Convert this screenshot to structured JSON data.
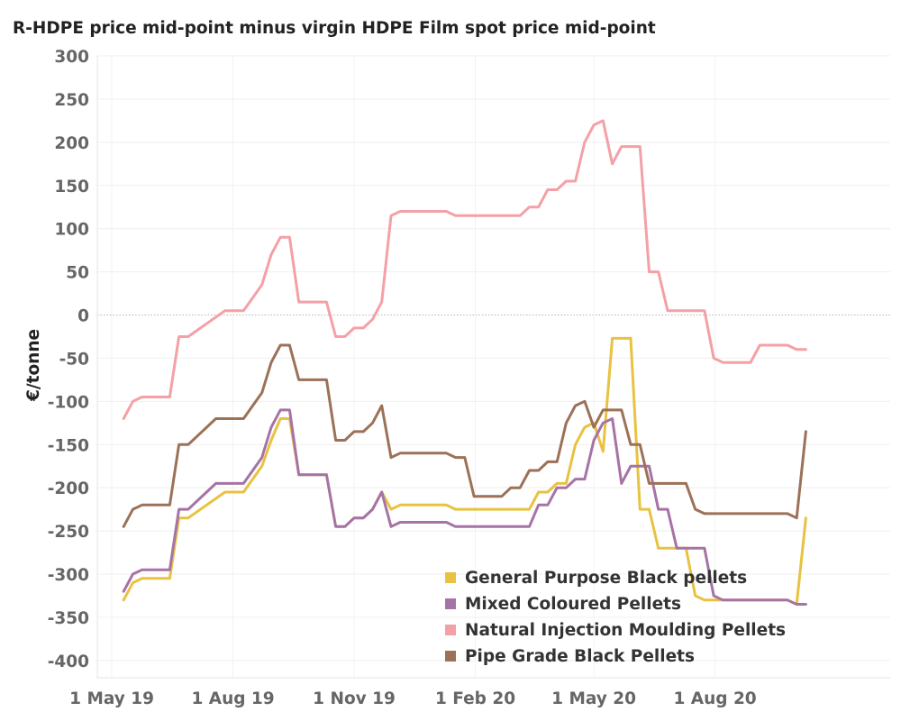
{
  "chart_data": {
    "type": "line",
    "title": "R-HDPE price mid-point minus virgin HDPE Film spot price mid-point",
    "xlabel": "",
    "ylabel": "€/tonne",
    "ylim": [
      -420,
      300
    ],
    "yticks": [
      300,
      250,
      200,
      150,
      100,
      50,
      0,
      -50,
      -100,
      -150,
      -200,
      -250,
      -300,
      -350,
      -400
    ],
    "xlim": [
      "2019-04-20",
      "2020-12-12"
    ],
    "xticks": [
      {
        "date": "2019-05-01",
        "label": "1 May 19"
      },
      {
        "date": "2019-08-01",
        "label": "1 Aug 19"
      },
      {
        "date": "2019-11-01",
        "label": "1 Nov 19"
      },
      {
        "date": "2020-02-01",
        "label": "1 Feb 20"
      },
      {
        "date": "2020-05-01",
        "label": "1 May 20"
      },
      {
        "date": "2020-08-01",
        "label": "1 Aug 20"
      }
    ],
    "legend_position": "bottom-right",
    "grid": true,
    "series": [
      {
        "name": "General Purpose Black pellets",
        "color": "#e8c241",
        "points": [
          [
            "2019-05-10",
            -330
          ],
          [
            "2019-05-17",
            -310
          ],
          [
            "2019-05-24",
            -305
          ],
          [
            "2019-05-31",
            -305
          ],
          [
            "2019-06-14",
            -305
          ],
          [
            "2019-06-21",
            -235
          ],
          [
            "2019-06-28",
            -235
          ],
          [
            "2019-07-26",
            -205
          ],
          [
            "2019-08-09",
            -205
          ],
          [
            "2019-08-23",
            -175
          ],
          [
            "2019-08-30",
            -145
          ],
          [
            "2019-09-06",
            -120
          ],
          [
            "2019-09-13",
            -120
          ],
          [
            "2019-09-20",
            -185
          ],
          [
            "2019-10-11",
            -185
          ],
          [
            "2019-10-18",
            -245
          ],
          [
            "2019-10-25",
            -245
          ],
          [
            "2019-11-01",
            -235
          ],
          [
            "2019-11-08",
            -235
          ],
          [
            "2019-11-15",
            -225
          ],
          [
            "2019-11-22",
            -205
          ],
          [
            "2019-11-29",
            -225
          ],
          [
            "2019-12-06",
            -220
          ],
          [
            "2020-01-10",
            -220
          ],
          [
            "2020-01-17",
            -225
          ],
          [
            "2020-03-13",
            -225
          ],
          [
            "2020-03-20",
            -205
          ],
          [
            "2020-03-27",
            -205
          ],
          [
            "2020-04-03",
            -195
          ],
          [
            "2020-04-10",
            -195
          ],
          [
            "2020-04-17",
            -150
          ],
          [
            "2020-04-24",
            -130
          ],
          [
            "2020-05-01",
            -125
          ],
          [
            "2020-05-08",
            -158
          ],
          [
            "2020-05-15",
            -27
          ],
          [
            "2020-05-29",
            -27
          ],
          [
            "2020-06-05",
            -225
          ],
          [
            "2020-06-12",
            -225
          ],
          [
            "2020-06-19",
            -270
          ],
          [
            "2020-07-10",
            -270
          ],
          [
            "2020-07-17",
            -325
          ],
          [
            "2020-07-24",
            -330
          ],
          [
            "2020-09-25",
            -330
          ],
          [
            "2020-10-02",
            -335
          ],
          [
            "2020-10-09",
            -235
          ]
        ]
      },
      {
        "name": "Mixed Coloured Pellets",
        "color": "#a673a6",
        "points": [
          [
            "2019-05-10",
            -320
          ],
          [
            "2019-05-17",
            -300
          ],
          [
            "2019-05-24",
            -295
          ],
          [
            "2019-05-31",
            -295
          ],
          [
            "2019-06-14",
            -295
          ],
          [
            "2019-06-21",
            -225
          ],
          [
            "2019-06-28",
            -225
          ],
          [
            "2019-07-19",
            -195
          ],
          [
            "2019-08-09",
            -195
          ],
          [
            "2019-08-23",
            -165
          ],
          [
            "2019-08-30",
            -130
          ],
          [
            "2019-09-06",
            -110
          ],
          [
            "2019-09-13",
            -110
          ],
          [
            "2019-09-20",
            -185
          ],
          [
            "2019-10-11",
            -185
          ],
          [
            "2019-10-18",
            -245
          ],
          [
            "2019-10-25",
            -245
          ],
          [
            "2019-11-01",
            -235
          ],
          [
            "2019-11-08",
            -235
          ],
          [
            "2019-11-15",
            -225
          ],
          [
            "2019-11-22",
            -205
          ],
          [
            "2019-11-29",
            -245
          ],
          [
            "2019-12-06",
            -240
          ],
          [
            "2020-01-10",
            -240
          ],
          [
            "2020-01-17",
            -245
          ],
          [
            "2020-03-13",
            -245
          ],
          [
            "2020-03-20",
            -220
          ],
          [
            "2020-03-27",
            -220
          ],
          [
            "2020-04-03",
            -200
          ],
          [
            "2020-04-10",
            -200
          ],
          [
            "2020-04-17",
            -190
          ],
          [
            "2020-04-24",
            -190
          ],
          [
            "2020-05-01",
            -145
          ],
          [
            "2020-05-08",
            -125
          ],
          [
            "2020-05-15",
            -120
          ],
          [
            "2020-05-22",
            -195
          ],
          [
            "2020-05-29",
            -175
          ],
          [
            "2020-06-12",
            -175
          ],
          [
            "2020-06-19",
            -225
          ],
          [
            "2020-06-26",
            -225
          ],
          [
            "2020-07-03",
            -270
          ],
          [
            "2020-07-24",
            -270
          ],
          [
            "2020-07-31",
            -325
          ],
          [
            "2020-08-07",
            -330
          ],
          [
            "2020-09-25",
            -330
          ],
          [
            "2020-10-02",
            -335
          ],
          [
            "2020-10-09",
            -335
          ]
        ]
      },
      {
        "name": "Natural Injection Moulding Pellets",
        "color": "#f4a0a6",
        "points": [
          [
            "2019-05-10",
            -120
          ],
          [
            "2019-05-17",
            -100
          ],
          [
            "2019-05-24",
            -95
          ],
          [
            "2019-05-31",
            -95
          ],
          [
            "2019-06-14",
            -95
          ],
          [
            "2019-06-21",
            -25
          ],
          [
            "2019-06-28",
            -25
          ],
          [
            "2019-07-26",
            5
          ],
          [
            "2019-08-09",
            5
          ],
          [
            "2019-08-23",
            35
          ],
          [
            "2019-08-30",
            70
          ],
          [
            "2019-09-06",
            90
          ],
          [
            "2019-09-13",
            90
          ],
          [
            "2019-09-20",
            15
          ],
          [
            "2019-10-11",
            15
          ],
          [
            "2019-10-18",
            -25
          ],
          [
            "2019-10-25",
            -25
          ],
          [
            "2019-11-01",
            -15
          ],
          [
            "2019-11-08",
            -15
          ],
          [
            "2019-11-15",
            -5
          ],
          [
            "2019-11-22",
            15
          ],
          [
            "2019-11-29",
            115
          ],
          [
            "2019-12-06",
            120
          ],
          [
            "2020-01-10",
            120
          ],
          [
            "2020-01-17",
            115
          ],
          [
            "2020-03-06",
            115
          ],
          [
            "2020-03-13",
            125
          ],
          [
            "2020-03-20",
            125
          ],
          [
            "2020-03-27",
            145
          ],
          [
            "2020-04-03",
            145
          ],
          [
            "2020-04-10",
            155
          ],
          [
            "2020-04-17",
            155
          ],
          [
            "2020-04-24",
            200
          ],
          [
            "2020-05-01",
            220
          ],
          [
            "2020-05-08",
            225
          ],
          [
            "2020-05-15",
            175
          ],
          [
            "2020-05-22",
            195
          ],
          [
            "2020-06-05",
            195
          ],
          [
            "2020-06-12",
            50
          ],
          [
            "2020-06-19",
            50
          ],
          [
            "2020-06-26",
            5
          ],
          [
            "2020-07-24",
            5
          ],
          [
            "2020-07-31",
            -50
          ],
          [
            "2020-08-07",
            -55
          ],
          [
            "2020-08-28",
            -55
          ],
          [
            "2020-09-04",
            -35
          ],
          [
            "2020-09-25",
            -35
          ],
          [
            "2020-10-02",
            -40
          ],
          [
            "2020-10-09",
            -40
          ]
        ]
      },
      {
        "name": "Pipe Grade Black Pellets",
        "color": "#9c7158",
        "points": [
          [
            "2019-05-10",
            -245
          ],
          [
            "2019-05-17",
            -225
          ],
          [
            "2019-05-24",
            -220
          ],
          [
            "2019-05-31",
            -220
          ],
          [
            "2019-06-14",
            -220
          ],
          [
            "2019-06-21",
            -150
          ],
          [
            "2019-06-28",
            -150
          ],
          [
            "2019-07-19",
            -120
          ],
          [
            "2019-08-09",
            -120
          ],
          [
            "2019-08-23",
            -90
          ],
          [
            "2019-08-30",
            -55
          ],
          [
            "2019-09-06",
            -35
          ],
          [
            "2019-09-13",
            -35
          ],
          [
            "2019-09-20",
            -75
          ],
          [
            "2019-10-11",
            -75
          ],
          [
            "2019-10-18",
            -145
          ],
          [
            "2019-10-25",
            -145
          ],
          [
            "2019-11-01",
            -135
          ],
          [
            "2019-11-08",
            -135
          ],
          [
            "2019-11-15",
            -125
          ],
          [
            "2019-11-22",
            -105
          ],
          [
            "2019-11-29",
            -165
          ],
          [
            "2019-12-06",
            -160
          ],
          [
            "2020-01-10",
            -160
          ],
          [
            "2020-01-17",
            -165
          ],
          [
            "2020-01-24",
            -165
          ],
          [
            "2020-01-31",
            -210
          ],
          [
            "2020-02-21",
            -210
          ],
          [
            "2020-02-28",
            -200
          ],
          [
            "2020-03-06",
            -200
          ],
          [
            "2020-03-13",
            -180
          ],
          [
            "2020-03-20",
            -180
          ],
          [
            "2020-03-27",
            -170
          ],
          [
            "2020-04-03",
            -170
          ],
          [
            "2020-04-10",
            -125
          ],
          [
            "2020-04-17",
            -105
          ],
          [
            "2020-04-24",
            -100
          ],
          [
            "2020-05-01",
            -130
          ],
          [
            "2020-05-08",
            -110
          ],
          [
            "2020-05-22",
            -110
          ],
          [
            "2020-05-29",
            -150
          ],
          [
            "2020-06-05",
            -150
          ],
          [
            "2020-06-12",
            -195
          ],
          [
            "2020-07-10",
            -195
          ],
          [
            "2020-07-17",
            -225
          ],
          [
            "2020-07-24",
            -230
          ],
          [
            "2020-09-25",
            -230
          ],
          [
            "2020-10-02",
            -235
          ],
          [
            "2020-10-09",
            -135
          ]
        ]
      }
    ]
  }
}
